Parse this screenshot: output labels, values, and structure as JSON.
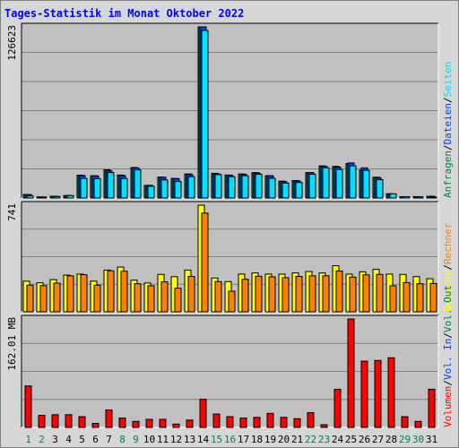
{
  "title": "Tages-Statistik im Monat Oktober 2022",
  "colors": {
    "panel_bg": "#c0c0c0",
    "grid": "#808080",
    "hits_green": "#008040",
    "files_blue": "#0040ff",
    "pages_cyan": "#00e0ff",
    "visits_yellow": "#ffff00",
    "sites_orange": "#ff8000",
    "volume_red": "#ff0000",
    "weekend_day": "#00805c",
    "weekday": "#000000"
  },
  "chart_data": [
    {
      "type": "bar",
      "series": [
        {
          "name": "Anfragen",
          "values": [
            2600,
            800,
            1300,
            1800,
            16900,
            16500,
            20900,
            17000,
            22600,
            9300,
            15500,
            14500,
            17800,
            126623,
            18300,
            17000,
            17800,
            18800,
            16500,
            12500,
            12900,
            18800,
            23800,
            23400,
            25500,
            20800,
            15400,
            3100,
            1000,
            1000,
            1300
          ]
        },
        {
          "name": "Dateien",
          "values": [
            2600,
            800,
            1300,
            1800,
            16600,
            16300,
            20100,
            16500,
            22300,
            9400,
            15300,
            14300,
            17400,
            126623,
            17900,
            16700,
            17500,
            18500,
            16500,
            12100,
            12600,
            18800,
            23400,
            22800,
            25900,
            22300,
            15000,
            3100,
            1000,
            1000,
            1300
          ]
        },
        {
          "name": "Seiten",
          "values": [
            1600,
            500,
            1100,
            1800,
            14500,
            14300,
            18800,
            14400,
            20800,
            8700,
            13400,
            12200,
            15800,
            124000,
            17300,
            15700,
            16500,
            17600,
            14600,
            11000,
            11500,
            17600,
            22300,
            21100,
            23800,
            20500,
            13600,
            3100,
            1000,
            800,
            700
          ]
        }
      ],
      "ylim": [
        0,
        126623
      ],
      "max_label": "126623",
      "legend": [
        "Anfragen",
        "/",
        "Dateien",
        "/",
        "Seiten"
      ]
    },
    {
      "type": "bar",
      "series": [
        {
          "name": "Besuche",
          "values": [
            213,
            202,
            224,
            255,
            262,
            213,
            290,
            311,
            220,
            200,
            260,
            244,
            290,
            741,
            235,
            210,
            262,
            270,
            262,
            262,
            270,
            280,
            270,
            320,
            262,
            278,
            295,
            262,
            260,
            245,
            230
          ]
        },
        {
          "name": "Rechner",
          "values": [
            185,
            182,
            199,
            250,
            258,
            185,
            285,
            282,
            195,
            181,
            208,
            164,
            246,
            686,
            210,
            143,
            226,
            247,
            243,
            237,
            246,
            250,
            250,
            283,
            241,
            257,
            260,
            181,
            203,
            195,
            197
          ]
        }
      ],
      "ylim": [
        0,
        741
      ],
      "max_label": "741",
      "legend": [
        "Besuche",
        "/",
        "Rechner"
      ]
    },
    {
      "type": "bar",
      "series": [
        {
          "name": "Volumen",
          "values": [
            62,
            18,
            19,
            19,
            16,
            6,
            26,
            14,
            9,
            12,
            12,
            5,
            11,
            42,
            20,
            16,
            14,
            15,
            21,
            15,
            13,
            22,
            4,
            57,
            162.01,
            99,
            100,
            104,
            16,
            9,
            57
          ]
        }
      ],
      "ylim": [
        0,
        162.01
      ],
      "max_label": "162.01 MB",
      "legend": [
        "Volumen",
        "/",
        "Vol. In",
        "/",
        "Vol. Out"
      ]
    }
  ],
  "days": [
    "1",
    "2",
    "3",
    "4",
    "5",
    "6",
    "7",
    "8",
    "9",
    "10",
    "11",
    "12",
    "13",
    "14",
    "15",
    "16",
    "17",
    "18",
    "19",
    "20",
    "21",
    "22",
    "23",
    "24",
    "25",
    "26",
    "27",
    "28",
    "29",
    "30",
    "31"
  ],
  "weekend_days": [
    1,
    2,
    8,
    9,
    15,
    16,
    22,
    23,
    29,
    30
  ]
}
